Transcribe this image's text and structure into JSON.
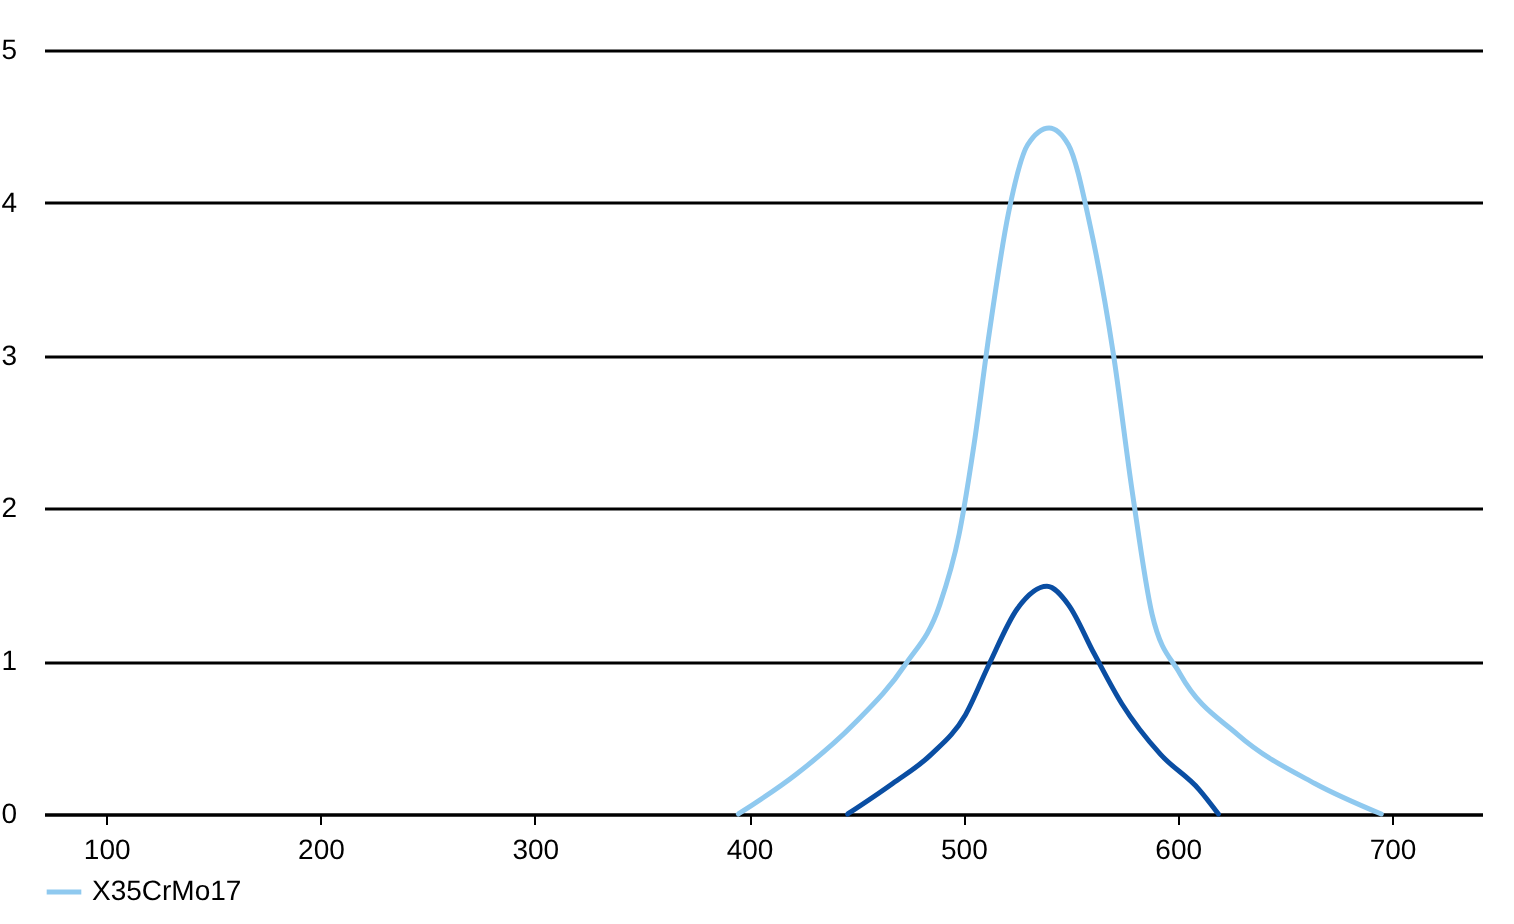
{
  "chart_data": {
    "type": "line",
    "series": [
      {
        "name": "X35CrMo17",
        "color": "#8fc9ef",
        "x": [
          395,
          422,
          449,
          473,
          489,
          498,
          505,
          512,
          521,
          530,
          540,
          549,
          559,
          570,
          579,
          588,
          601,
          628,
          664,
          695
        ],
        "values": [
          0,
          0.26,
          0.59,
          0.98,
          1.37,
          1.83,
          2.42,
          3.14,
          3.93,
          4.38,
          4.49,
          4.38,
          3.86,
          3.01,
          2.09,
          1.31,
          0.92,
          0.52,
          0.2,
          0
        ]
      },
      {
        "color": "#0a4ea3",
        "x": [
          446,
          467,
          485,
          501,
          512,
          525,
          539,
          549,
          561,
          574,
          592,
          610,
          619
        ],
        "values": [
          0,
          0.2,
          0.39,
          0.65,
          0.98,
          1.34,
          1.49,
          1.37,
          1.05,
          0.72,
          0.39,
          0.16,
          0
        ]
      }
    ],
    "xlim": [
      71,
      742
    ],
    "xticks": [
      100,
      200,
      300,
      400,
      500,
      600,
      700
    ],
    "ylim": [
      0,
      5
    ],
    "yticks": [
      0,
      1,
      2,
      3,
      4,
      5
    ],
    "grid": "y",
    "legend": "bottom left",
    "marker": "none",
    "line_style": "solid"
  }
}
